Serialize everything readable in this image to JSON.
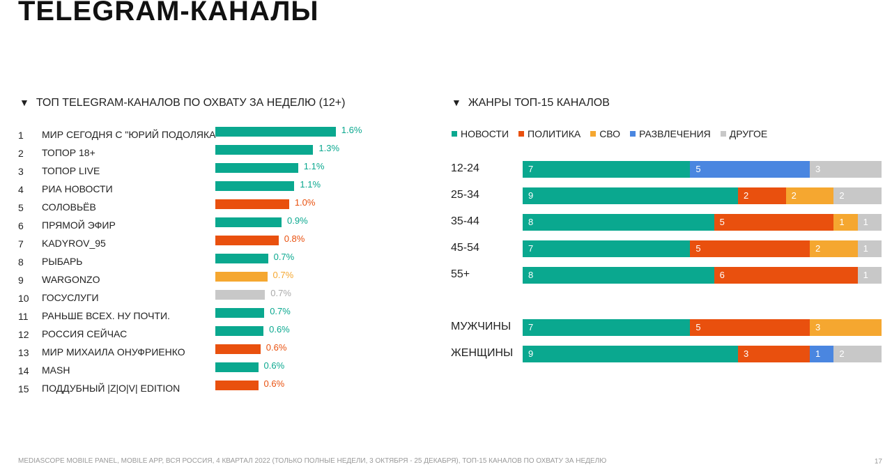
{
  "title": "TELEGRAM-КАНАЛЫ",
  "footer": "MEDIASCOPE MOBILE PANEL, MOBILE APP, ВСЯ РОССИЯ, 4 КВАРТАЛ 2022 (ТОЛЬКО ПОЛНЫЕ НЕДЕЛИ, 3 ОКТЯБРЯ - 25 ДЕКАБРЯ), ТОП-15 КАНАЛОВ ПО ОХВАТУ ЗА НЕДЕЛЮ",
  "page_number": "17",
  "colors": {
    "news": "#0aa88f",
    "politics": "#e9500e",
    "svo": "#f5a730",
    "entertainment": "#4a86e0",
    "other": "#c8c8c8"
  },
  "chart_data": [
    {
      "type": "bar",
      "title": "ТОП TELEGRAM-КАНАЛОВ ПО ОХВАТУ ЗА НЕДЕЛЮ (12+)",
      "orientation": "horizontal",
      "unit": "%",
      "items": [
        {
          "rank": "1",
          "name": "МИР СЕГОДНЯ С \"ЮРИЙ ПОДОЛЯКА\"",
          "value": 1.6,
          "label": "1.6%",
          "genre": "news"
        },
        {
          "rank": "2",
          "name": "ТОПОР 18+",
          "value": 1.3,
          "label": "1.3%",
          "genre": "news"
        },
        {
          "rank": "3",
          "name": "ТОПОР LIVE",
          "value": 1.1,
          "label": "1.1%",
          "genre": "news"
        },
        {
          "rank": "4",
          "name": "РИА НОВОСТИ",
          "value": 1.05,
          "label": "1.1%",
          "genre": "news"
        },
        {
          "rank": "5",
          "name": "СОЛОВЬЁВ",
          "value": 0.98,
          "label": "1.0%",
          "genre": "politics"
        },
        {
          "rank": "6",
          "name": "ПРЯМОЙ ЭФИР",
          "value": 0.88,
          "label": "0.9%",
          "genre": "news"
        },
        {
          "rank": "7",
          "name": "KADYROV_95",
          "value": 0.84,
          "label": "0.8%",
          "genre": "politics"
        },
        {
          "rank": "8",
          "name": "РЫБАРЬ",
          "value": 0.7,
          "label": "0.7%",
          "genre": "news"
        },
        {
          "rank": "9",
          "name": "WARGONZO",
          "value": 0.69,
          "label": "0.7%",
          "genre": "svo"
        },
        {
          "rank": "10",
          "name": "ГОСУСЛУГИ",
          "value": 0.66,
          "label": "0.7%",
          "genre": "other"
        },
        {
          "rank": "11",
          "name": "РАНЬШЕ ВСЕХ. НУ ПОЧТИ.",
          "value": 0.65,
          "label": "0.7%",
          "genre": "news"
        },
        {
          "rank": "12",
          "name": "РОССИЯ СЕЙЧАС",
          "value": 0.64,
          "label": "0.6%",
          "genre": "news"
        },
        {
          "rank": "13",
          "name": "МИР МИХАИЛА ОНУФРИЕНКО",
          "value": 0.6,
          "label": "0.6%",
          "genre": "politics"
        },
        {
          "rank": "14",
          "name": "MASH",
          "value": 0.57,
          "label": "0.6%",
          "genre": "news"
        },
        {
          "rank": "15",
          "name": "ПОДДУБНЫЙ |Z|O|V| EDITION",
          "value": 0.57,
          "label": "0.6%",
          "genre": "politics"
        }
      ]
    },
    {
      "type": "bar",
      "stacked": true,
      "orientation": "horizontal",
      "title": "ЖАНРЫ ТОП-15 КАНАЛОВ",
      "legend_position": "top-left",
      "series": [
        {
          "key": "news",
          "name": "НОВОСТИ"
        },
        {
          "key": "politics",
          "name": "ПОЛИТИКА"
        },
        {
          "key": "svo",
          "name": "СВО"
        },
        {
          "key": "entertainment",
          "name": "РАЗВЛЕЧЕНИЯ"
        },
        {
          "key": "other",
          "name": "ДРУГОЕ"
        }
      ],
      "rows": [
        {
          "label": "12-24",
          "values": {
            "news": 7,
            "politics": 0,
            "svo": 0,
            "entertainment": 5,
            "other": 3
          }
        },
        {
          "label": "25-34",
          "values": {
            "news": 9,
            "politics": 2,
            "svo": 2,
            "entertainment": 0,
            "other": 2
          }
        },
        {
          "label": "35-44",
          "values": {
            "news": 8,
            "politics": 5,
            "svo": 1,
            "entertainment": 0,
            "other": 1
          }
        },
        {
          "label": "45-54",
          "values": {
            "news": 7,
            "politics": 5,
            "svo": 2,
            "entertainment": 0,
            "other": 1
          }
        },
        {
          "label": "55+",
          "values": {
            "news": 8,
            "politics": 6,
            "svo": 0,
            "entertainment": 0,
            "other": 1
          }
        },
        {
          "label": "МУЖЧИНЫ",
          "values": {
            "news": 7,
            "politics": 5,
            "svo": 3,
            "entertainment": 0,
            "other": 0
          },
          "gap_before": true
        },
        {
          "label": "ЖЕНЩИНЫ",
          "values": {
            "news": 9,
            "politics": 3,
            "svo": 0,
            "entertainment": 1,
            "other": 2
          }
        }
      ],
      "total": 15
    }
  ]
}
